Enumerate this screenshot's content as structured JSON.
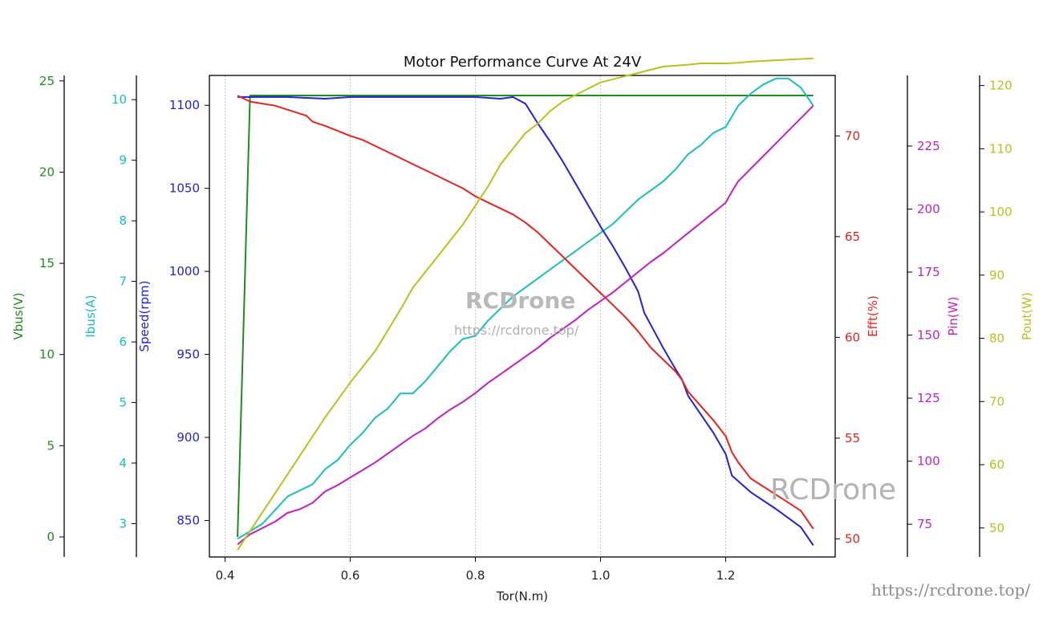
{
  "chart_data": {
    "type": "line",
    "title": "Motor Performance Curve At 24V",
    "xlabel": "Tor(N.m)",
    "xlim": [
      0.375,
      1.375
    ],
    "xticks": [
      0.4,
      0.6,
      0.8,
      1.0,
      1.2
    ],
    "grid": "vertical dashed",
    "axes": [
      {
        "id": "vbus",
        "label": "Vbus(V)",
        "color": "#1f8c1f",
        "side": "left",
        "lim": [
          -1.1,
          25.3
        ],
        "ticks": [
          0,
          5,
          10,
          15,
          20,
          25
        ]
      },
      {
        "id": "ibus",
        "label": "Ibus(A)",
        "color": "#17bfc0",
        "side": "left",
        "lim": [
          2.45,
          10.4
        ],
        "ticks": [
          3,
          4,
          5,
          6,
          7,
          8,
          9,
          10
        ]
      },
      {
        "id": "speed",
        "label": "Speed(rpm)",
        "color": "#2222d6",
        "side": "left",
        "lim": [
          828,
          1118
        ],
        "ticks": [
          850,
          900,
          950,
          1000,
          1050,
          1100
        ]
      },
      {
        "id": "efft",
        "label": "Efft(%)",
        "color": "#e8231d",
        "side": "right",
        "lim": [
          49.1,
          73.0
        ],
        "ticks": [
          50,
          55,
          60,
          65,
          70
        ]
      },
      {
        "id": "pin",
        "label": "Pin(W)",
        "color": "#c21fc2",
        "side": "right",
        "lim": [
          62,
          253
        ],
        "ticks": [
          75,
          100,
          125,
          150,
          175,
          200,
          225
        ]
      },
      {
        "id": "pout",
        "label": "Pout(W)",
        "color": "#b9c21a",
        "side": "right",
        "lim": [
          45.4,
          121.6
        ],
        "ticks": [
          50,
          60,
          70,
          80,
          90,
          100,
          110,
          120
        ]
      }
    ],
    "series": [
      {
        "axis": "vbus",
        "x": [
          0.42,
          0.44,
          0.5,
          0.6,
          0.7,
          0.8,
          0.9,
          1.0,
          1.1,
          1.2,
          1.3,
          1.34
        ],
        "values": [
          0,
          24.2,
          24.2,
          24.2,
          24.2,
          24.2,
          24.2,
          24.2,
          24.2,
          24.2,
          24.2,
          24.2
        ]
      },
      {
        "axis": "ibus",
        "x": [
          0.42,
          0.46,
          0.5,
          0.54,
          0.56,
          0.58,
          0.6,
          0.62,
          0.64,
          0.66,
          0.68,
          0.7,
          0.72,
          0.74,
          0.76,
          0.78,
          0.8,
          0.82,
          0.84,
          0.86,
          0.88,
          0.9,
          0.92,
          0.94,
          0.96,
          0.98,
          1.0,
          1.02,
          1.04,
          1.06,
          1.08,
          1.1,
          1.12,
          1.14,
          1.16,
          1.18,
          1.2,
          1.22,
          1.24,
          1.26,
          1.28,
          1.3,
          1.32,
          1.34
        ],
        "values": [
          2.75,
          3.0,
          3.45,
          3.65,
          3.9,
          4.05,
          4.3,
          4.5,
          4.75,
          4.9,
          5.15,
          5.15,
          5.35,
          5.6,
          5.85,
          6.05,
          6.1,
          6.35,
          6.55,
          6.75,
          6.9,
          7.05,
          7.2,
          7.35,
          7.5,
          7.65,
          7.8,
          7.95,
          8.15,
          8.35,
          8.5,
          8.65,
          8.85,
          9.1,
          9.25,
          9.45,
          9.55,
          9.9,
          10.1,
          10.25,
          10.35,
          10.35,
          10.2,
          9.9
        ]
      },
      {
        "axis": "speed",
        "x": [
          0.42,
          0.5,
          0.56,
          0.6,
          0.7,
          0.76,
          0.8,
          0.84,
          0.86,
          0.88,
          0.9,
          0.92,
          0.94,
          0.96,
          0.98,
          1.0,
          1.02,
          1.04,
          1.06,
          1.07,
          1.08,
          1.1,
          1.12,
          1.13,
          1.14,
          1.16,
          1.18,
          1.2,
          1.21,
          1.24,
          1.28,
          1.32,
          1.34
        ],
        "values": [
          1105,
          1105,
          1104,
          1105,
          1105,
          1105,
          1105,
          1104,
          1105,
          1101,
          1089,
          1078,
          1066,
          1053,
          1040,
          1027,
          1015,
          1002,
          988,
          975,
          968,
          954,
          941,
          935,
          925,
          914,
          903,
          890,
          877,
          867,
          857,
          846,
          835
        ]
      },
      {
        "axis": "efft",
        "x": [
          0.42,
          0.44,
          0.48,
          0.5,
          0.52,
          0.53,
          0.54,
          0.56,
          0.6,
          0.62,
          0.64,
          0.66,
          0.68,
          0.7,
          0.72,
          0.74,
          0.76,
          0.78,
          0.8,
          0.82,
          0.84,
          0.86,
          0.88,
          0.9,
          0.92,
          0.94,
          0.96,
          0.98,
          1.0,
          1.02,
          1.04,
          1.06,
          1.07,
          1.08,
          1.1,
          1.12,
          1.13,
          1.14,
          1.16,
          1.18,
          1.2,
          1.21,
          1.22,
          1.24,
          1.28,
          1.32,
          1.34
        ],
        "values": [
          72.0,
          71.7,
          71.5,
          71.3,
          71.1,
          71.0,
          70.7,
          70.5,
          70.0,
          69.8,
          69.5,
          69.2,
          68.9,
          68.6,
          68.3,
          68.0,
          67.7,
          67.4,
          67.0,
          66.7,
          66.4,
          66.1,
          65.7,
          65.2,
          64.6,
          64.0,
          63.4,
          62.8,
          62.2,
          61.6,
          61.0,
          60.3,
          59.9,
          59.5,
          58.9,
          58.3,
          57.9,
          57.3,
          56.6,
          55.9,
          55.1,
          54.3,
          53.8,
          53.0,
          52.2,
          51.4,
          50.5
        ]
      },
      {
        "axis": "pin",
        "x": [
          0.42,
          0.44,
          0.46,
          0.48,
          0.5,
          0.52,
          0.54,
          0.56,
          0.58,
          0.6,
          0.62,
          0.64,
          0.66,
          0.68,
          0.7,
          0.72,
          0.74,
          0.76,
          0.78,
          0.8,
          0.82,
          0.84,
          0.86,
          0.88,
          0.9,
          0.92,
          0.94,
          0.96,
          0.98,
          1.0,
          1.02,
          1.04,
          1.06,
          1.08,
          1.1,
          1.12,
          1.14,
          1.16,
          1.18,
          1.2,
          1.21,
          1.22,
          1.24,
          1.26,
          1.28,
          1.3,
          1.32,
          1.34
        ],
        "values": [
          67,
          71,
          73.5,
          76,
          79.5,
          81,
          83.5,
          88,
          90.5,
          93.5,
          96.5,
          99.5,
          103,
          106.5,
          110,
          113,
          117,
          120.5,
          123.5,
          127,
          131,
          134.5,
          138,
          141.5,
          145,
          149,
          152.5,
          156,
          160,
          163.5,
          167,
          171,
          175,
          179,
          182.5,
          186.5,
          190.5,
          194.5,
          198.5,
          202.5,
          207,
          211,
          216,
          221,
          226,
          231,
          236,
          241
        ]
      },
      {
        "axis": "pout",
        "x": [
          0.42,
          0.46,
          0.5,
          0.54,
          0.56,
          0.6,
          0.64,
          0.68,
          0.7,
          0.74,
          0.78,
          0.8,
          0.82,
          0.84,
          0.86,
          0.88,
          0.9,
          0.92,
          0.94,
          0.96,
          0.98,
          1.0,
          1.02,
          1.04,
          1.06,
          1.08,
          1.1,
          1.14,
          1.16,
          1.2,
          1.22,
          1.24,
          1.28,
          1.32,
          1.34
        ],
        "values": [
          46.5,
          52.5,
          58.5,
          64.5,
          67.5,
          73.0,
          78.0,
          84.5,
          88.0,
          93.0,
          98.0,
          101.0,
          104.0,
          107.5,
          110.0,
          112.5,
          114.0,
          116.0,
          117.5,
          118.5,
          119.5,
          120.5,
          121.0,
          121.5,
          122.0,
          122.5,
          123.0,
          123.3,
          123.5,
          123.5,
          123.6,
          123.8,
          124.0,
          124.2,
          124.3
        ]
      }
    ]
  },
  "watermarks": {
    "center_logo": "RCDrone",
    "center_url": "https://rcdrone.top/",
    "corner_logo": "RCDrone",
    "bottom_url": "https://rcdrone.top/"
  }
}
